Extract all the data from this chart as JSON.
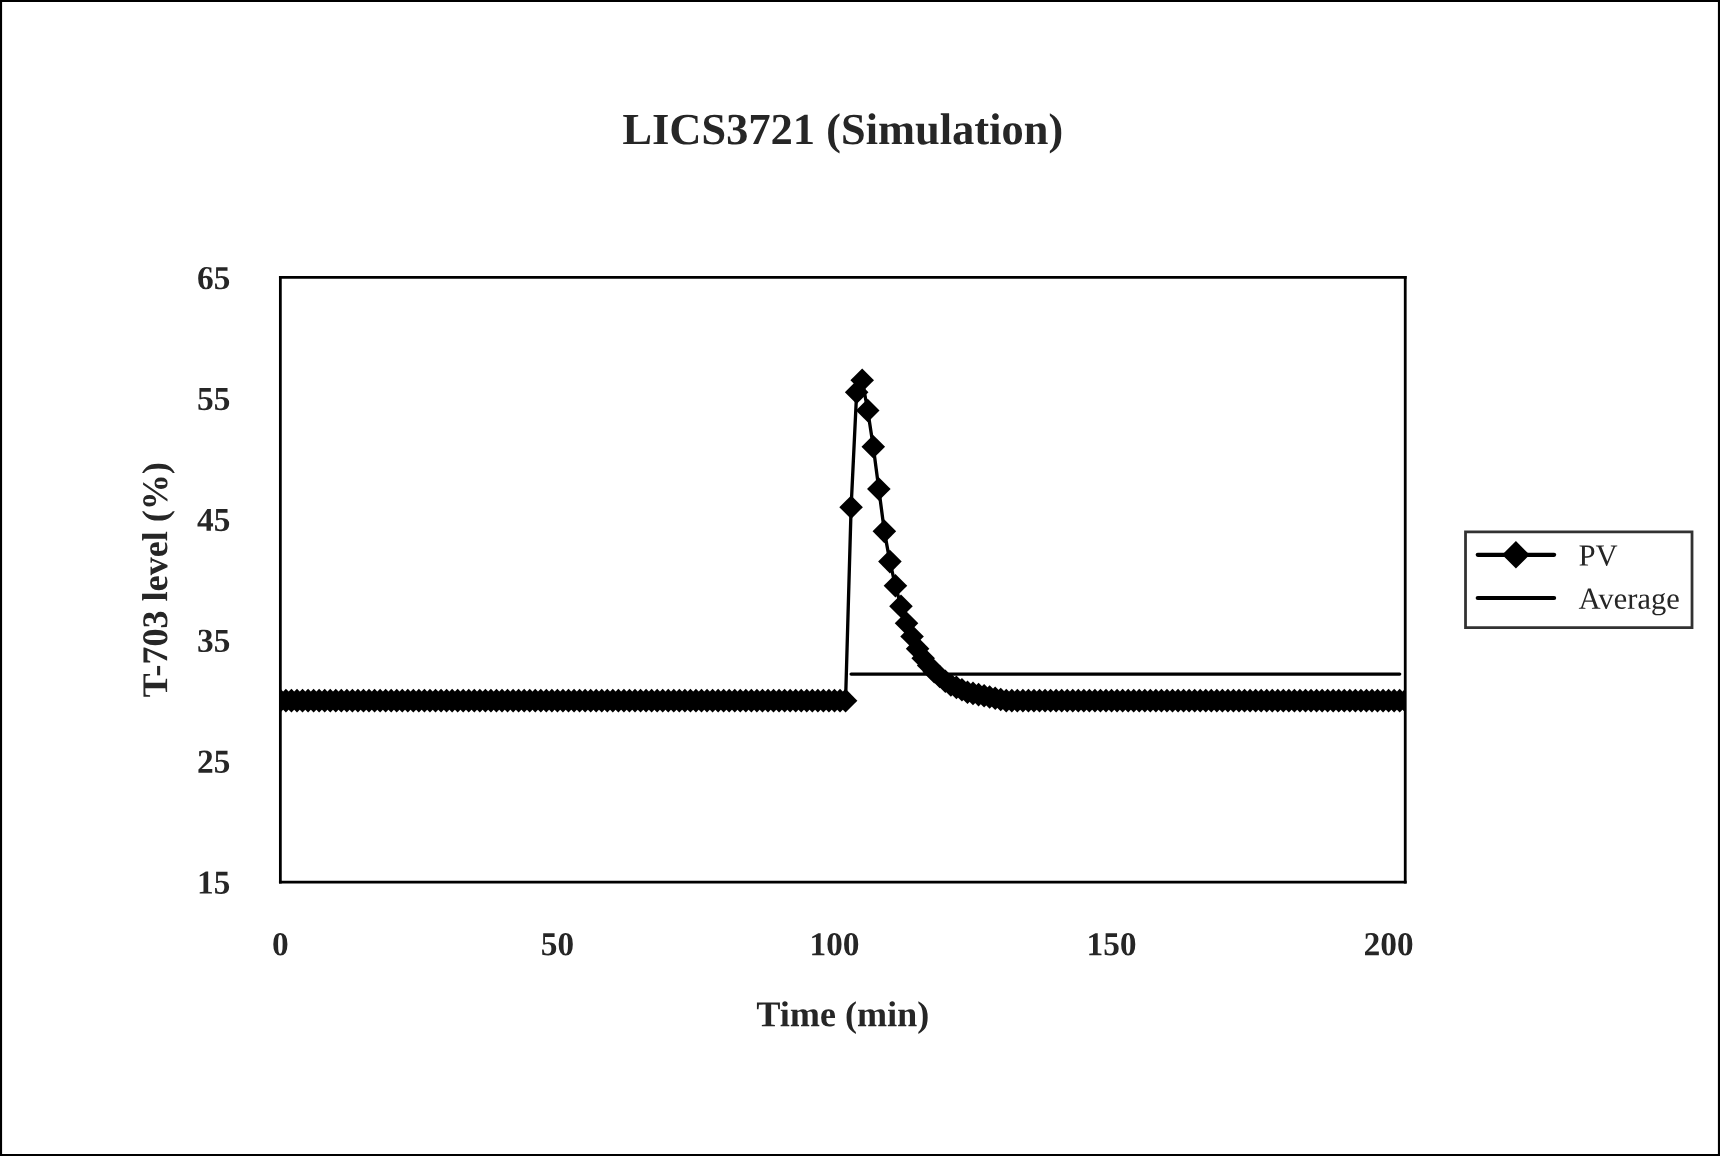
{
  "chart_data": {
    "type": "line",
    "title": "LICS3721 (Simulation)",
    "xlabel": "Time (min)",
    "ylabel": "T-703 level (%)",
    "xlim": [
      0,
      203
    ],
    "xticks": [
      0,
      50,
      100,
      150,
      200
    ],
    "ylim": [
      15,
      65
    ],
    "yticks": [
      15,
      25,
      35,
      45,
      55,
      65
    ],
    "grid": false,
    "legend": "right",
    "series": [
      {
        "name": "PV",
        "color": "#000000",
        "marker": "diamond",
        "x": [
          0,
          1,
          2,
          3,
          4,
          5,
          6,
          7,
          8,
          9,
          10,
          11,
          12,
          13,
          14,
          15,
          16,
          17,
          18,
          19,
          20,
          21,
          22,
          23,
          24,
          25,
          26,
          27,
          28,
          29,
          30,
          31,
          32,
          33,
          34,
          35,
          36,
          37,
          38,
          39,
          40,
          41,
          42,
          43,
          44,
          45,
          46,
          47,
          48,
          49,
          50,
          51,
          52,
          53,
          54,
          55,
          56,
          57,
          58,
          59,
          60,
          61,
          62,
          63,
          64,
          65,
          66,
          67,
          68,
          69,
          70,
          71,
          72,
          73,
          74,
          75,
          76,
          77,
          78,
          79,
          80,
          81,
          82,
          83,
          84,
          85,
          86,
          87,
          88,
          89,
          90,
          91,
          92,
          93,
          94,
          95,
          96,
          97,
          98,
          99,
          100,
          101,
          102,
          103,
          104,
          105,
          106,
          107,
          108,
          109,
          110,
          111,
          112,
          113,
          114,
          115,
          116,
          117,
          118,
          119,
          120,
          121,
          122,
          123,
          124,
          125,
          126,
          127,
          128,
          129,
          130,
          131,
          132,
          133,
          134,
          135,
          136,
          137,
          138,
          139,
          140,
          141,
          142,
          143,
          144,
          145,
          146,
          147,
          148,
          149,
          150,
          151,
          152,
          153,
          154,
          155,
          156,
          157,
          158,
          159,
          160,
          161,
          162,
          163,
          164,
          165,
          166,
          167,
          168,
          169,
          170,
          171,
          172,
          173,
          174,
          175,
          176,
          177,
          178,
          179,
          180,
          181,
          182,
          183,
          184,
          185,
          186,
          187,
          188,
          189,
          190,
          191,
          192,
          193,
          194,
          195,
          196,
          197,
          198,
          199,
          200,
          201,
          202,
          203
        ],
        "values": [
          30,
          30,
          30,
          30,
          30,
          30,
          30,
          30,
          30,
          30,
          30,
          30,
          30,
          30,
          30,
          30,
          30,
          30,
          30,
          30,
          30,
          30,
          30,
          30,
          30,
          30,
          30,
          30,
          30,
          30,
          30,
          30,
          30,
          30,
          30,
          30,
          30,
          30,
          30,
          30,
          30,
          30,
          30,
          30,
          30,
          30,
          30,
          30,
          30,
          30,
          30,
          30,
          30,
          30,
          30,
          30,
          30,
          30,
          30,
          30,
          30,
          30,
          30,
          30,
          30,
          30,
          30,
          30,
          30,
          30,
          30,
          30,
          30,
          30,
          30,
          30,
          30,
          30,
          30,
          30,
          30,
          30,
          30,
          30,
          30,
          30,
          30,
          30,
          30,
          30,
          30,
          30,
          30,
          30,
          30,
          30,
          30,
          30,
          30,
          30,
          30,
          30,
          30,
          46,
          55.5,
          56.5,
          54,
          51,
          47.5,
          44,
          41.5,
          39.5,
          37.8,
          36.4,
          35.3,
          34.3,
          33.5,
          32.9,
          32.4,
          32,
          31.6,
          31.3,
          31.1,
          30.9,
          30.7,
          30.6,
          30.5,
          30.4,
          30.3,
          30.2,
          30.1,
          30,
          30,
          30,
          30,
          30,
          30,
          30,
          30,
          30,
          30,
          30,
          30,
          30,
          30,
          30,
          30,
          30,
          30,
          30,
          30,
          30,
          30,
          30,
          30,
          30,
          30,
          30,
          30,
          30,
          30,
          30,
          30,
          30,
          30,
          30,
          30,
          30,
          30,
          30,
          30,
          30,
          30,
          30,
          30,
          30,
          30,
          30,
          30,
          30,
          30,
          30,
          30,
          30,
          30,
          30,
          30,
          30,
          30,
          30,
          30,
          30,
          30,
          30,
          30,
          30,
          30,
          30,
          30,
          30,
          30,
          30,
          30,
          30
        ]
      },
      {
        "name": "Average",
        "color": "#000000",
        "marker": "none",
        "x": [
          103,
          202
        ],
        "values": [
          32.2,
          32.2
        ]
      }
    ]
  }
}
